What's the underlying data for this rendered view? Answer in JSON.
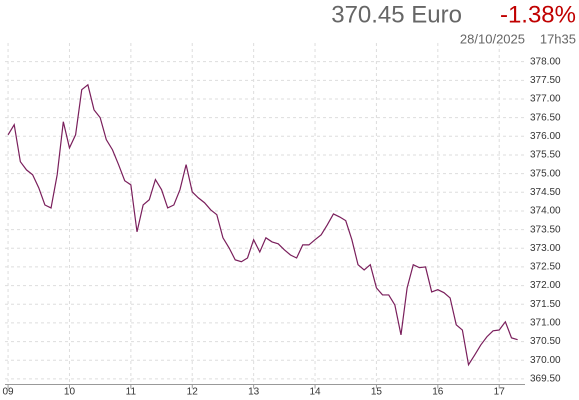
{
  "chart_data": {
    "type": "line",
    "title": "370.45 Euro",
    "change": "-1.38%",
    "date": "28/10/2025",
    "time": "17h35",
    "color": "#7a1f5c",
    "grid": true,
    "x": [
      9.0,
      9.1,
      9.2,
      9.3,
      9.4,
      9.5,
      9.6,
      9.7,
      9.8,
      9.9,
      10.0,
      10.1,
      10.2,
      10.3,
      10.4,
      10.5,
      10.6,
      10.7,
      10.8,
      10.9,
      11.0,
      11.1,
      11.2,
      11.3,
      11.4,
      11.5,
      11.6,
      11.7,
      11.8,
      11.9,
      12.0,
      12.1,
      12.2,
      12.3,
      12.4,
      12.5,
      12.6,
      12.7,
      12.8,
      12.9,
      13.0,
      13.1,
      13.2,
      13.3,
      13.4,
      13.5,
      13.6,
      13.7,
      13.8,
      13.9,
      14.0,
      14.1,
      14.2,
      14.3,
      14.4,
      14.5,
      14.6,
      14.7,
      14.8,
      14.9,
      15.0,
      15.1,
      15.2,
      15.3,
      15.4,
      15.5,
      15.6,
      15.7,
      15.8,
      15.9,
      16.0,
      16.1,
      16.2,
      16.3,
      16.4,
      16.5,
      16.6,
      16.7,
      16.8,
      16.9,
      17.0,
      17.1,
      17.2,
      17.3
    ],
    "values": [
      376.04,
      376.31,
      375.32,
      375.1,
      374.97,
      374.62,
      374.16,
      374.08,
      374.97,
      376.39,
      375.69,
      376.04,
      377.25,
      377.38,
      376.71,
      376.5,
      375.91,
      375.64,
      375.24,
      374.81,
      374.7,
      373.44,
      374.16,
      374.3,
      374.84,
      374.57,
      374.08,
      374.16,
      374.57,
      375.24,
      374.51,
      374.35,
      374.22,
      374.03,
      373.9,
      373.28,
      373.01,
      372.69,
      372.64,
      372.74,
      373.23,
      372.9,
      373.28,
      373.17,
      373.12,
      372.96,
      372.82,
      372.74,
      373.09,
      373.09,
      373.23,
      373.36,
      373.63,
      373.92,
      373.84,
      373.74,
      373.23,
      372.56,
      372.42,
      372.56,
      371.94,
      371.75,
      371.75,
      371.48,
      370.68,
      371.94,
      372.56,
      372.48,
      372.5,
      371.83,
      371.89,
      371.81,
      371.67,
      370.95,
      370.81,
      369.88,
      370.14,
      370.41,
      370.63,
      370.79,
      370.81,
      371.03,
      370.6,
      370.55
    ],
    "xlim": [
      8.95,
      17.42
    ],
    "xticks": [
      {
        "value": 9,
        "label": "09"
      },
      10,
      11,
      12,
      13,
      14,
      15,
      16,
      17
    ],
    "ylim": [
      369.35,
      378.5
    ],
    "yticks": [
      {
        "value": 369.5,
        "label": "369.50"
      },
      {
        "value": 370,
        "label": "370.00"
      },
      {
        "value": 370.5,
        "label": "370.50"
      },
      {
        "value": 371,
        "label": "371.00"
      },
      {
        "value": 371.5,
        "label": "371.50"
      },
      {
        "value": 372,
        "label": "372.00"
      },
      {
        "value": 372.5,
        "label": "372.50"
      },
      {
        "value": 373,
        "label": "373.00"
      },
      {
        "value": 373.5,
        "label": "373.50"
      },
      {
        "value": 374,
        "label": "374.00"
      },
      {
        "value": 374.5,
        "label": "374.50"
      },
      {
        "value": 375,
        "label": "375.00"
      },
      {
        "value": 375.5,
        "label": "375.50"
      },
      {
        "value": 376,
        "label": "376.00"
      },
      {
        "value": 376.5,
        "label": "376.50"
      },
      {
        "value": 377,
        "label": "377.00"
      },
      {
        "value": 377.5,
        "label": "377.50"
      },
      {
        "value": 378,
        "label": "378.00"
      }
    ]
  }
}
